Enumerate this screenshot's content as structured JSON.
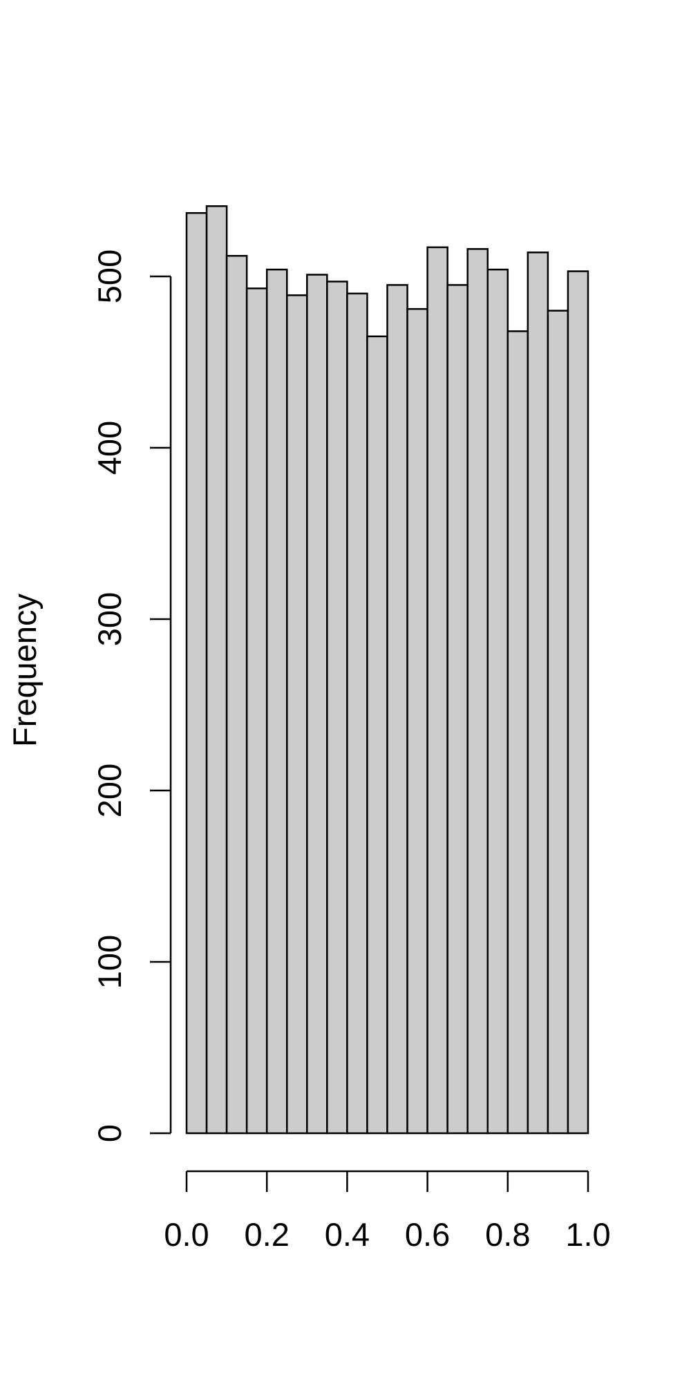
{
  "chart_data": {
    "type": "bar",
    "subtype": "histogram",
    "title": "",
    "xlabel": "",
    "ylabel": "Frequency",
    "bin_edges": [
      0.0,
      0.05,
      0.1,
      0.15,
      0.2,
      0.25,
      0.3,
      0.35,
      0.4,
      0.45,
      0.5,
      0.55,
      0.6,
      0.65,
      0.7,
      0.75,
      0.8,
      0.85,
      0.9,
      0.95,
      1.0
    ],
    "values": [
      537,
      541,
      512,
      493,
      504,
      489,
      501,
      497,
      490,
      465,
      495,
      481,
      517,
      495,
      516,
      504,
      468,
      514,
      480,
      503
    ],
    "xlim": [
      0.0,
      1.0
    ],
    "ylim": [
      0,
      541
    ],
    "x_ticks": [
      0.0,
      0.2,
      0.4,
      0.6,
      0.8,
      1.0
    ],
    "x_tick_labels": [
      "0.0",
      "0.2",
      "0.4",
      "0.6",
      "0.8",
      "1.0"
    ],
    "y_ticks": [
      0,
      100,
      200,
      300,
      400,
      500
    ],
    "y_tick_labels": [
      "0",
      "100",
      "200",
      "300",
      "400",
      "500"
    ],
    "bar_fill": "#cccccc",
    "bar_stroke": "#000000",
    "grid": false,
    "legend": "none"
  }
}
